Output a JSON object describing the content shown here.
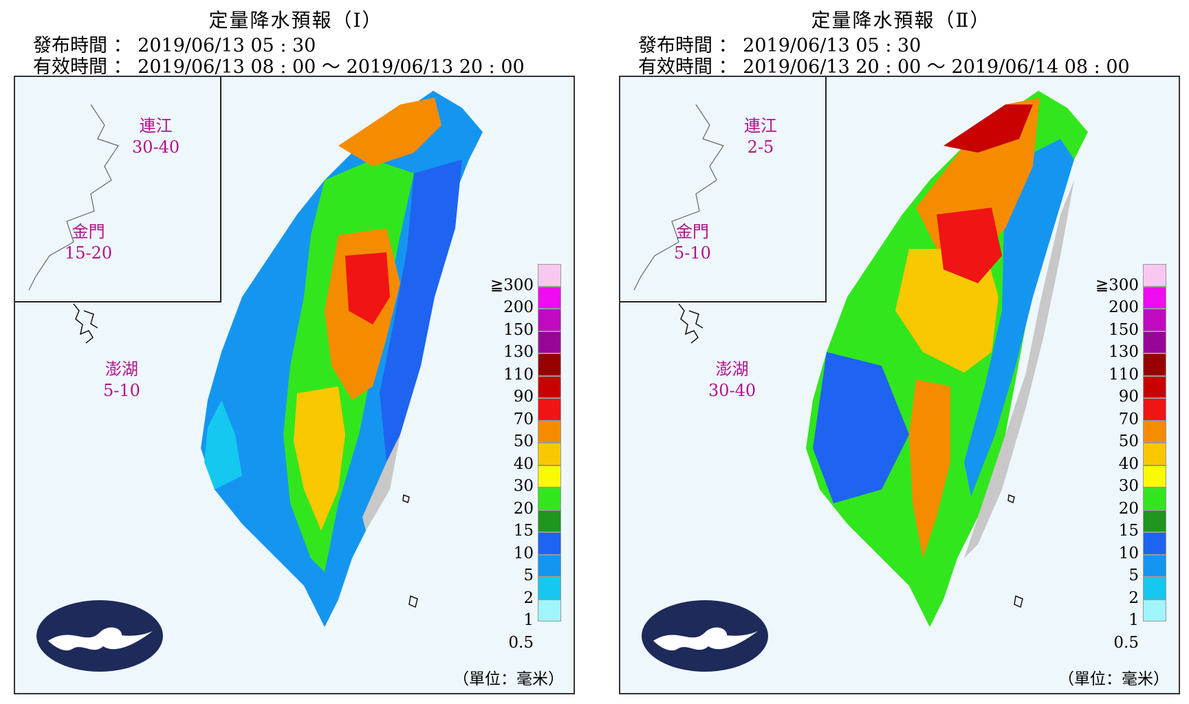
{
  "panels": [
    {
      "title": "定量降水預報（Ⅰ）",
      "issue_label": "發布時間",
      "issue_time": "2019/06/13 05 : 30",
      "valid_label": "有效時間",
      "valid_time": "2019/06/13 08 : 00 ～ 2019/06/13 20 : 00",
      "regions": [
        {
          "name": "連江",
          "range": "30-40"
        },
        {
          "name": "金門",
          "range": "15-20"
        },
        {
          "name": "澎湖",
          "range": "5-10"
        }
      ]
    },
    {
      "title": "定量降水預報（Ⅱ）",
      "issue_label": "發布時間",
      "issue_time": "2019/06/13 05 : 30",
      "valid_label": "有效時間",
      "valid_time": "2019/06/13 20 : 00 ～ 2019/06/14 08 : 00",
      "regions": [
        {
          "name": "連江",
          "range": "2-5"
        },
        {
          "name": "金門",
          "range": "5-10"
        },
        {
          "name": "澎湖",
          "range": "30-40"
        }
      ]
    }
  ],
  "legend": {
    "labels": [
      "≧300",
      "200",
      "150",
      "130",
      "110",
      "90",
      "70",
      "50",
      "40",
      "30",
      "20",
      "15",
      "10",
      "5",
      "2",
      "1",
      "0.5"
    ],
    "colors": [
      "#f9c8f0",
      "#f00cf0",
      "#c00ac0",
      "#960596",
      "#960000",
      "#c80000",
      "#f01414",
      "#f58c00",
      "#fac800",
      "#fafa00",
      "#32e61e",
      "#1e961e",
      "#1e64f0",
      "#1496f0",
      "#14c8f0",
      "#a0f5fa",
      "#c8c8c8"
    ],
    "unit": "（單位：毫米）"
  }
}
